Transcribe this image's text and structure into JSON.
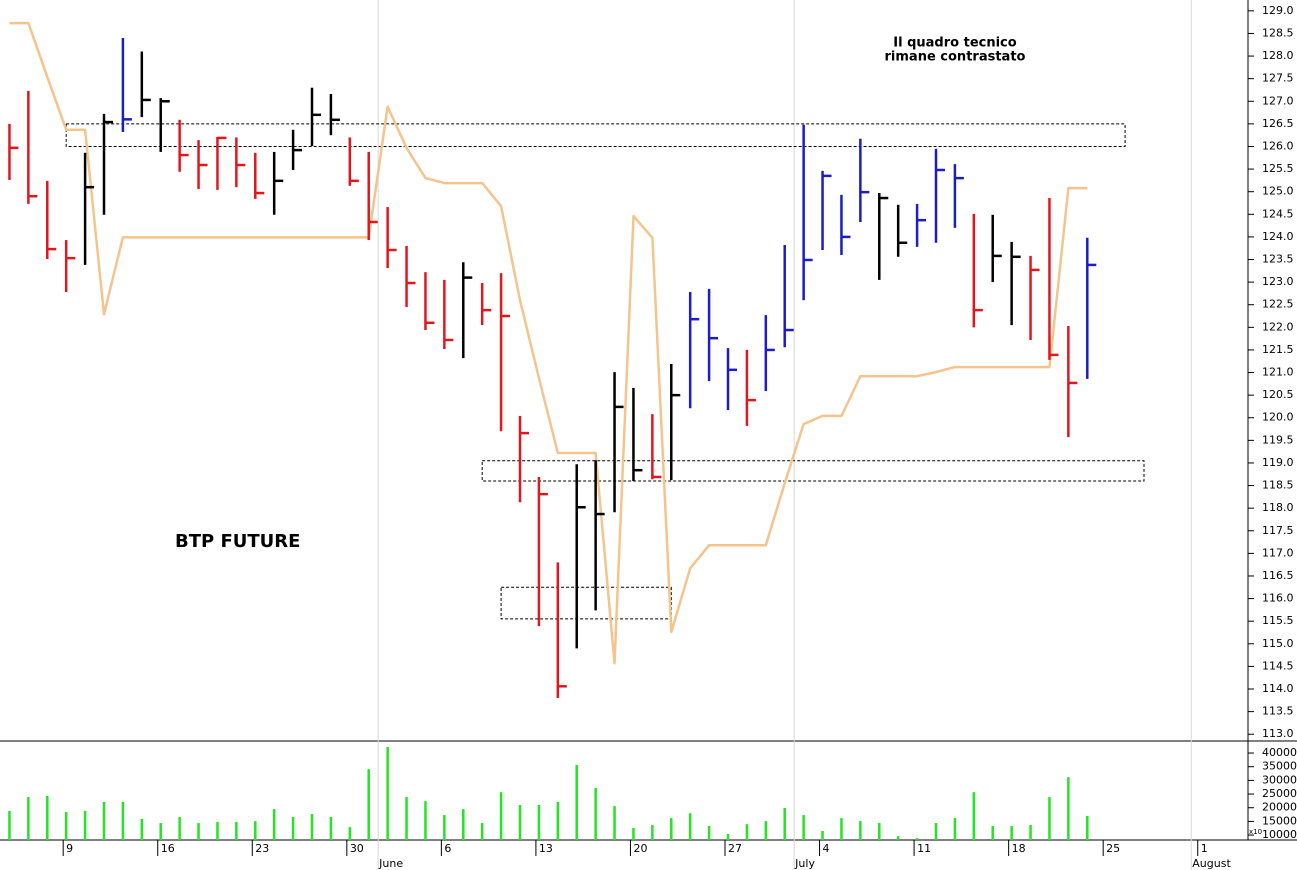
{
  "chart_data": {
    "type": "ohlc",
    "title": "BTP FUTURE",
    "annotation": [
      "Il quadro tecnico",
      "rimane contrastato"
    ],
    "categories": [
      null,
      null,
      null,
      "9",
      null,
      null,
      null,
      null,
      "16",
      null,
      null,
      null,
      null,
      "23",
      null,
      null,
      null,
      null,
      "30",
      null,
      null,
      null,
      null,
      "6",
      null,
      null,
      null,
      null,
      "13",
      null,
      null,
      null,
      null,
      "20",
      null,
      null,
      null,
      null,
      "27",
      null,
      null,
      null,
      null,
      "4",
      null,
      null,
      null,
      null,
      "11",
      null,
      null,
      null,
      null,
      "18",
      null,
      null,
      null,
      null,
      "25",
      null,
      null,
      null,
      null,
      "1",
      null,
      null
    ],
    "month_labels": [
      null,
      null,
      null,
      null,
      null,
      null,
      null,
      null,
      null,
      null,
      null,
      null,
      null,
      null,
      null,
      null,
      null,
      null,
      null,
      null,
      "June",
      null,
      null,
      null,
      null,
      null,
      null,
      null,
      null,
      null,
      null,
      null,
      null,
      null,
      null,
      null,
      null,
      null,
      null,
      null,
      null,
      null,
      "July",
      null,
      null,
      null,
      null,
      null,
      null,
      null,
      null,
      null,
      null,
      null,
      null,
      null,
      null,
      null,
      null,
      null,
      null,
      null,
      null,
      "August",
      null,
      null
    ],
    "high": [
      126.5,
      127.23,
      125.24,
      123.93,
      125.86,
      126.72,
      128.4,
      128.1,
      127.07,
      126.59,
      126.14,
      126.21,
      126.2,
      125.86,
      125.88,
      126.37,
      127.3,
      127.16,
      126.2,
      125.88,
      124.66,
      123.8,
      123.22,
      123.05,
      123.44,
      122.98,
      123.2,
      120.04,
      118.69,
      116.8,
      118.97,
      119.06,
      121.01,
      120.66,
      120.08,
      121.19,
      122.78,
      122.85,
      121.54,
      121.5,
      122.27,
      123.82,
      126.48,
      125.46,
      124.93,
      126.17,
      124.97,
      124.71,
      124.73,
      125.95,
      125.61,
      124.51,
      124.49,
      123.89,
      123.58,
      124.86,
      122.03,
      123.98,
      null,
      null,
      null,
      null,
      null,
      null,
      null,
      null
    ],
    "low": [
      125.26,
      124.73,
      123.51,
      122.78,
      123.38,
      124.49,
      126.32,
      126.65,
      125.88,
      125.44,
      125.06,
      125.04,
      125.1,
      124.84,
      124.49,
      125.48,
      126.01,
      126.25,
      125.13,
      123.93,
      123.31,
      122.45,
      121.94,
      121.52,
      121.32,
      122.05,
      119.7,
      118.13,
      115.39,
      113.8,
      114.9,
      115.74,
      117.91,
      118.6,
      118.64,
      118.62,
      120.21,
      120.81,
      120.17,
      119.82,
      120.59,
      121.56,
      122.6,
      123.71,
      123.6,
      124.33,
      123.05,
      123.56,
      123.78,
      123.87,
      124.2,
      122.0,
      123.0,
      122.05,
      121.72,
      121.28,
      119.57,
      120.86,
      null,
      null,
      null,
      null,
      null,
      null,
      null,
      null
    ],
    "close": [
      125.97,
      124.9,
      123.73,
      123.53,
      125.1,
      126.54,
      126.6,
      127.03,
      127.0,
      125.81,
      125.59,
      126.19,
      125.59,
      124.97,
      125.24,
      125.92,
      126.7,
      126.59,
      125.24,
      124.33,
      123.71,
      122.98,
      122.1,
      121.72,
      123.1,
      122.38,
      122.25,
      119.66,
      118.31,
      114.06,
      118.02,
      117.87,
      120.24,
      118.84,
      118.69,
      120.5,
      122.18,
      121.76,
      121.06,
      120.39,
      121.5,
      121.94,
      123.49,
      125.35,
      124.0,
      124.99,
      124.86,
      123.87,
      124.37,
      125.48,
      125.3,
      122.38,
      123.58,
      123.56,
      123.27,
      121.39,
      120.77,
      123.38,
      null,
      null,
      null,
      null,
      null,
      null,
      null,
      null
    ],
    "colors": [
      "#e3161d",
      "#e3161d",
      "#e3161d",
      "#e3161d",
      "#000000",
      "#000000",
      "#1c1cc8",
      "#000000",
      "#000000",
      "#e3161d",
      "#e3161d",
      "#e3161d",
      "#e3161d",
      "#e3161d",
      "#000000",
      "#000000",
      "#000000",
      "#000000",
      "#e3161d",
      "#e3161d",
      "#e3161d",
      "#e3161d",
      "#e3161d",
      "#e3161d",
      "#000000",
      "#e3161d",
      "#e3161d",
      "#e3161d",
      "#e3161d",
      "#e3161d",
      "#000000",
      "#000000",
      "#000000",
      "#000000",
      "#e3161d",
      "#000000",
      "#1c1cc8",
      "#1c1cc8",
      "#1c1cc8",
      "#e3161d",
      "#1c1cc8",
      "#1c1cc8",
      "#1c1cc8",
      "#1c1cc8",
      "#1c1cc8",
      "#1c1cc8",
      "#000000",
      "#000000",
      "#1c1cc8",
      "#1c1cc8",
      "#1c1cc8",
      "#e3161d",
      "#000000",
      "#000000",
      "#e3161d",
      "#e3161d",
      "#e3161d",
      "#1c1cc8",
      null,
      null,
      null,
      null,
      null,
      null,
      null,
      null
    ],
    "stop_line": {
      "color": "#f5c48c",
      "values": [
        128.73,
        128.73,
        127.54,
        126.37,
        126.37,
        122.29,
        123.99,
        123.99,
        123.99,
        123.99,
        123.99,
        123.99,
        123.99,
        123.99,
        123.99,
        123.99,
        123.99,
        123.99,
        123.99,
        123.99,
        126.88,
        125.97,
        125.3,
        125.19,
        125.19,
        125.19,
        124.68,
        122.6,
        120.88,
        119.22,
        119.22,
        119.22,
        114.57,
        124.46,
        123.98,
        115.26,
        116.67,
        117.18,
        117.18,
        117.18,
        117.18,
        118.55,
        119.86,
        120.04,
        120.04,
        120.92,
        120.92,
        120.92,
        120.92,
        121.01,
        121.12,
        121.12,
        121.12,
        121.12,
        121.12,
        121.12,
        125.08,
        125.08,
        null,
        null,
        null,
        null,
        null,
        null,
        null,
        null
      ]
    },
    "zones": [
      {
        "ylim": [
          126.0,
          126.5
        ],
        "range": [
          3,
          59
        ]
      },
      {
        "ylim": [
          118.6,
          119.05
        ],
        "range": [
          25,
          60
        ]
      },
      {
        "ylim": [
          115.55,
          116.25
        ],
        "range": [
          26,
          35
        ]
      }
    ],
    "ylim": [
      112.85,
      129.24
    ],
    "yticks": [
      {
        "value": 113,
        "label": "113.0"
      },
      {
        "value": 113.5,
        "label": "113.5"
      },
      {
        "value": 114,
        "label": "114.0"
      },
      {
        "value": 114.5,
        "label": "114.5"
      },
      {
        "value": 115,
        "label": "115.0"
      },
      {
        "value": 115.5,
        "label": "115.5"
      },
      {
        "value": 116,
        "label": "116.0"
      },
      {
        "value": 116.5,
        "label": "116.5"
      },
      {
        "value": 117,
        "label": "117.0"
      },
      {
        "value": 117.5,
        "label": "117.5"
      },
      {
        "value": 118,
        "label": "118.0"
      },
      {
        "value": 118.5,
        "label": "118.5"
      },
      {
        "value": 119,
        "label": "119.0"
      },
      {
        "value": 119.5,
        "label": "119.5"
      },
      {
        "value": 120,
        "label": "120.0"
      },
      {
        "value": 120.5,
        "label": "120.5"
      },
      {
        "value": 121,
        "label": "121.0"
      },
      {
        "value": 121.5,
        "label": "121.5"
      },
      {
        "value": 122,
        "label": "122.0"
      },
      {
        "value": 122.5,
        "label": "122.5"
      },
      {
        "value": 123,
        "label": "123.0"
      },
      {
        "value": 123.5,
        "label": "123.5"
      },
      {
        "value": 124,
        "label": "124.0"
      },
      {
        "value": 124.5,
        "label": "124.5"
      },
      {
        "value": 125,
        "label": "125.0"
      },
      {
        "value": 125.5,
        "label": "125.5"
      },
      {
        "value": 126,
        "label": "126.0"
      },
      {
        "value": 126.5,
        "label": "126.5"
      },
      {
        "value": 127,
        "label": "127.0"
      },
      {
        "value": 127.5,
        "label": "127.5"
      },
      {
        "value": 128,
        "label": "128.0"
      },
      {
        "value": 128.5,
        "label": "128.5"
      },
      {
        "value": 129,
        "label": "129.0"
      }
    ],
    "volume": {
      "type": "bar",
      "color": "#22e622",
      "values": [
        18800,
        23900,
        24300,
        18400,
        18800,
        22100,
        22100,
        15900,
        14400,
        16600,
        14400,
        14800,
        14800,
        15100,
        19500,
        16600,
        17700,
        16600,
        12900,
        34100,
        42200,
        23900,
        22400,
        17300,
        19500,
        14400,
        25700,
        21000,
        21000,
        22100,
        35600,
        27200,
        20600,
        12600,
        13700,
        16200,
        18000,
        13300,
        10400,
        14000,
        15100,
        19900,
        17300,
        11500,
        16200,
        15100,
        14400,
        9600,
        8900,
        14400,
        16200,
        25700,
        13300,
        13300,
        13700,
        23900,
        31200,
        17000,
        null,
        null,
        null,
        null,
        null,
        null,
        null,
        null
      ],
      "ylim": [
        8200,
        44400
      ],
      "yticks": [
        10000,
        15000,
        20000,
        25000,
        30000,
        35000,
        40000
      ],
      "unit_label": "x10"
    }
  }
}
